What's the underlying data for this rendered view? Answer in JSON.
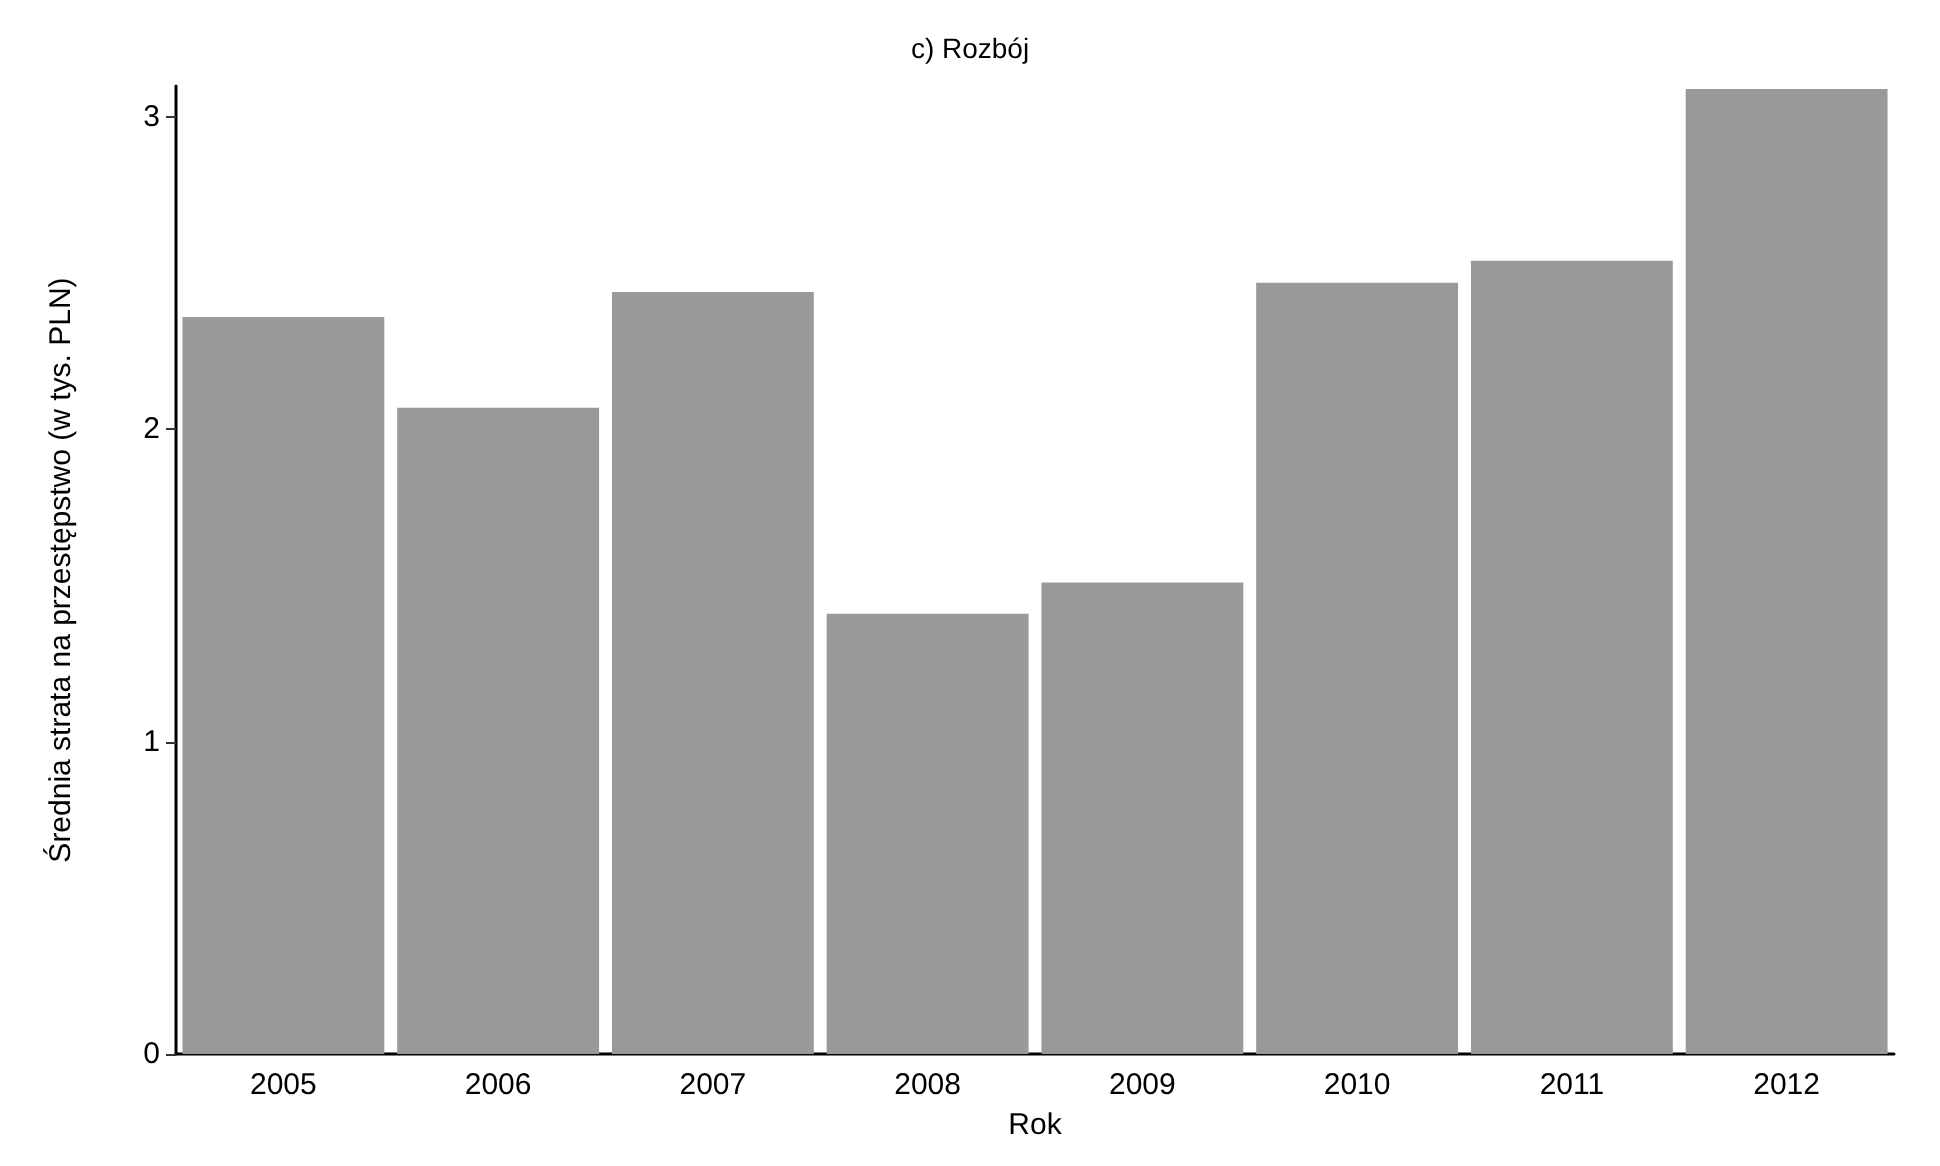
{
  "chart_data": {
    "type": "bar",
    "title": "c) Rozbój",
    "xlabel": "Rok",
    "ylabel": "Średnia strata na przestępstwo (w tys. PLN)",
    "categories": [
      "2005",
      "2006",
      "2007",
      "2008",
      "2009",
      "2010",
      "2011",
      "2012"
    ],
    "values": [
      2.36,
      2.07,
      2.44,
      1.41,
      1.51,
      2.47,
      2.54,
      3.09
    ],
    "color": "#999999",
    "ylim": [
      0,
      3.1
    ],
    "yticks": [
      0,
      1,
      2,
      3
    ],
    "grid": false
  }
}
